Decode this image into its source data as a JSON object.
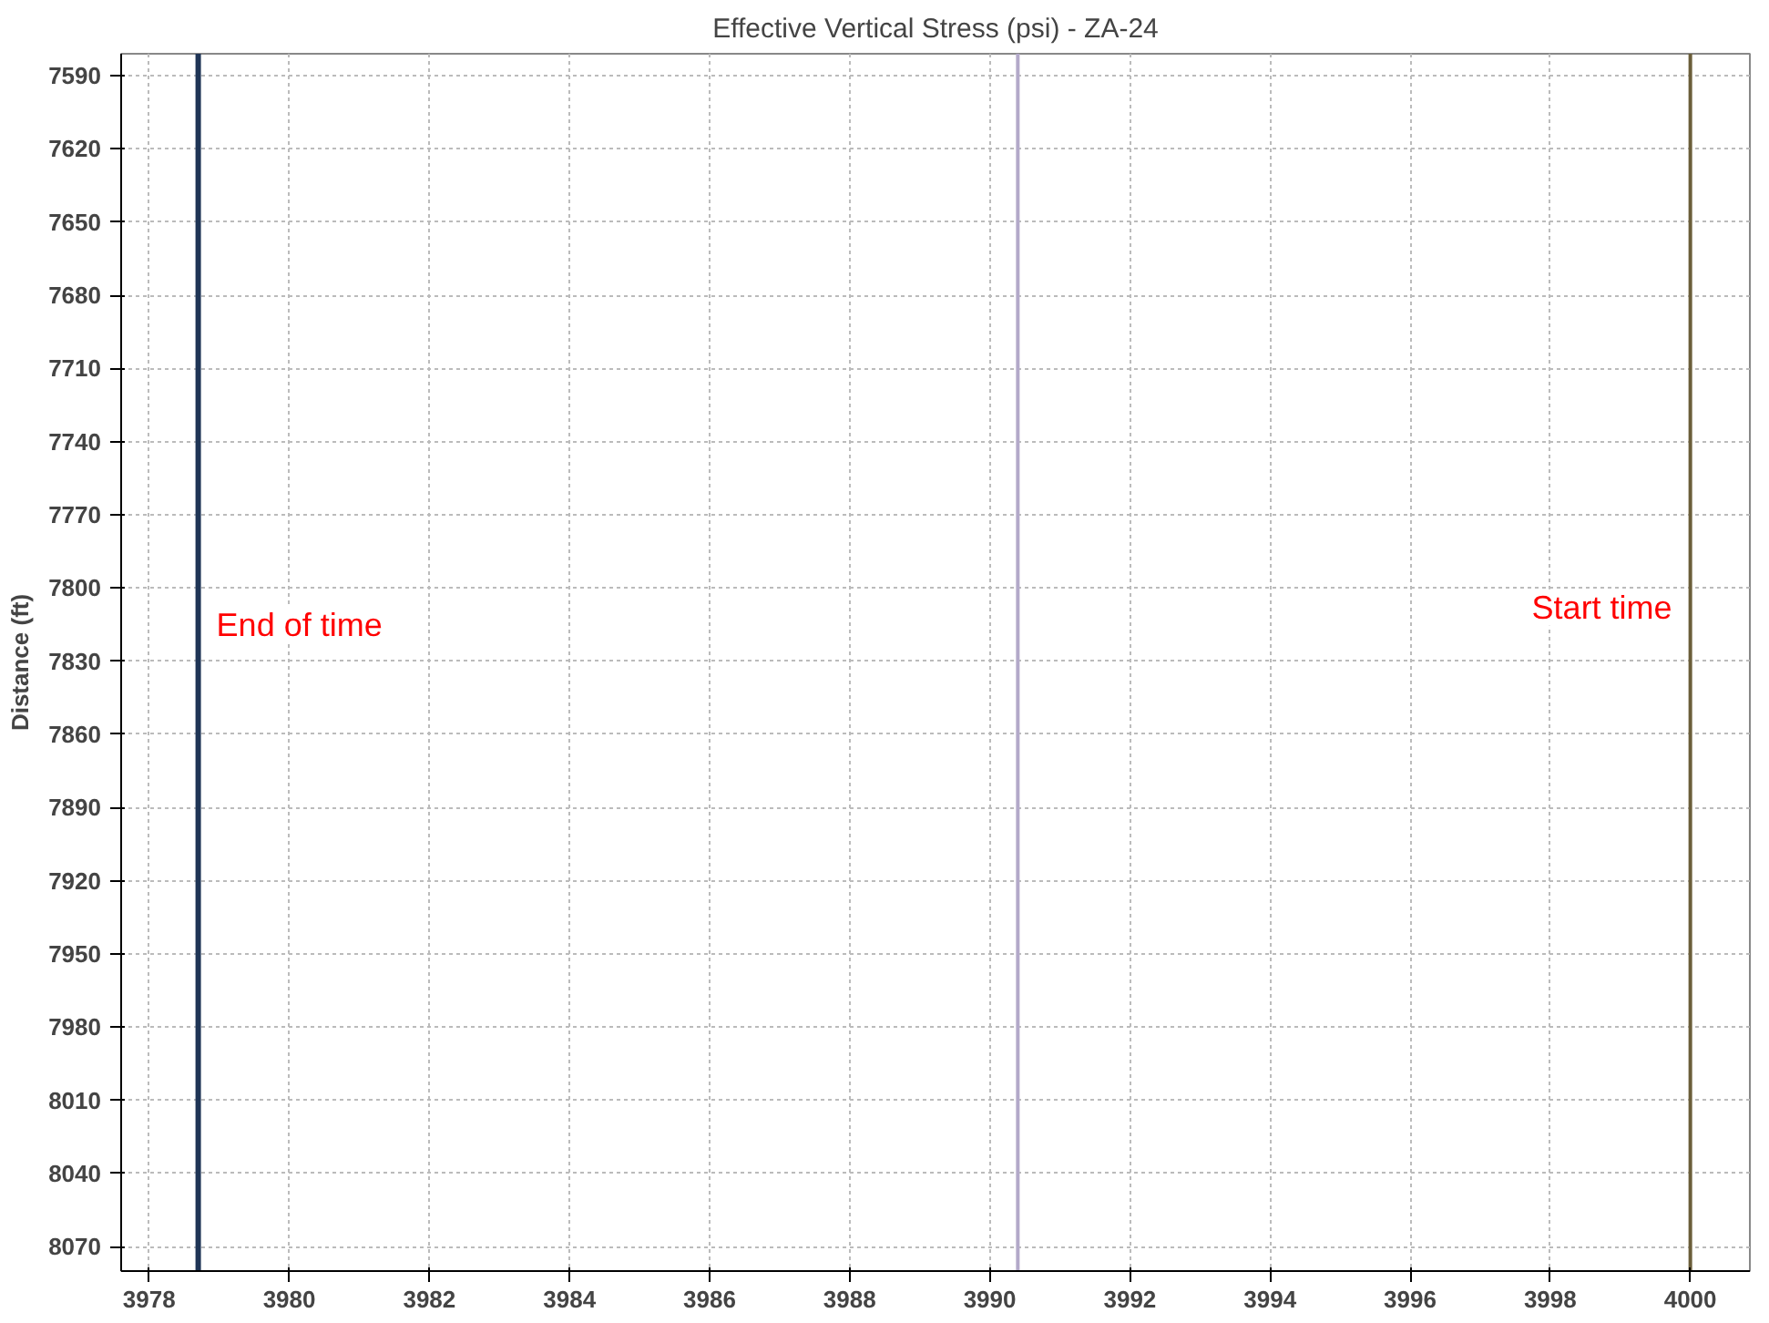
{
  "chart_data": {
    "type": "line",
    "title": "Effective Vertical Stress (psi) - ZA-24",
    "ylabel": "Distance (ft)",
    "series": [
      {
        "x": [
          3978.7,
          3978.7
        ],
        "values": [
          7581,
          8080
        ],
        "color": "#1f3556"
      },
      {
        "x": [
          3990.4,
          3990.4
        ],
        "values": [
          7581,
          8080
        ],
        "color": "#b3a9c9"
      },
      {
        "x": [
          4000,
          4000
        ],
        "values": [
          7581,
          8080
        ],
        "color": "#6b5e3a"
      }
    ],
    "xlim": [
      3977.6,
      4000.85
    ],
    "xticks": [
      3978,
      3980,
      3982,
      3984,
      3986,
      3988,
      3990,
      3992,
      3994,
      3996,
      3998,
      4000
    ],
    "ylim": [
      8080,
      7581
    ],
    "yticks": [
      7590,
      7620,
      7650,
      7680,
      7710,
      7740,
      7770,
      7800,
      7830,
      7860,
      7890,
      7920,
      7950,
      7980,
      8010,
      8040,
      8070
    ],
    "grid": true,
    "line_style": "solid",
    "annotations": [
      {
        "text": "End of time",
        "x": 3978.7,
        "y": 7815
      },
      {
        "text": "Start time",
        "x": 4000,
        "y": 7808
      }
    ]
  }
}
